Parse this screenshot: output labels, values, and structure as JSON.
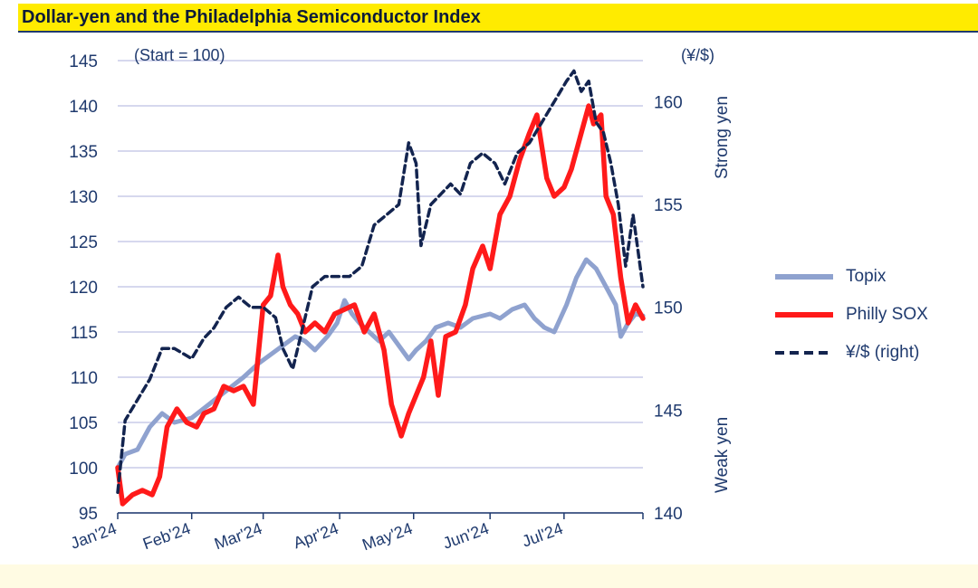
{
  "header": {
    "title": "Dollar-yen and the Philadelphia Semiconductor Index"
  },
  "annotations": {
    "start_note": "(Start = 100)",
    "right_unit": "(¥/$)",
    "strong_yen": "Strong yen",
    "weak_yen": "Weak yen"
  },
  "colors": {
    "topix": "#8fa2cf",
    "sox": "#ff1a1a",
    "usdjpy": "#13244f",
    "grid": "#c9cbe8",
    "axis": "#1f3a6e"
  },
  "chart_data": {
    "type": "line",
    "x_axis": {
      "categories": [
        "Jan'24",
        "Feb'24",
        "Mar'24",
        "Apr'24",
        "May'24",
        "Jun'24",
        "Jul'24"
      ],
      "range": [
        "2024-01-02",
        "2024-08-02"
      ]
    },
    "y_left": {
      "ticks": [
        95,
        100,
        105,
        110,
        115,
        120,
        125,
        130,
        135,
        140,
        145
      ],
      "range": [
        95,
        145
      ],
      "label": "(Start = 100)"
    },
    "y_right": {
      "ticks": [
        140,
        145,
        150,
        155,
        160
      ],
      "range": [
        140,
        162
      ],
      "label": "(¥/$)"
    },
    "grid": true,
    "legend_position": "right",
    "series": [
      {
        "name": "Topix",
        "axis": "left",
        "style": "solid",
        "points": [
          [
            "2024-01-02",
            100.0
          ],
          [
            "2024-01-05",
            101.5
          ],
          [
            "2024-01-10",
            102.0
          ],
          [
            "2024-01-15",
            104.5
          ],
          [
            "2024-01-20",
            106.0
          ],
          [
            "2024-01-25",
            105.0
          ],
          [
            "2024-02-01",
            105.5
          ],
          [
            "2024-02-08",
            107.0
          ],
          [
            "2024-02-15",
            108.5
          ],
          [
            "2024-02-22",
            110.0
          ],
          [
            "2024-02-28",
            111.5
          ],
          [
            "2024-03-04",
            112.5
          ],
          [
            "2024-03-09",
            113.5
          ],
          [
            "2024-03-14",
            114.5
          ],
          [
            "2024-03-18",
            114.0
          ],
          [
            "2024-03-22",
            113.0
          ],
          [
            "2024-03-27",
            114.5
          ],
          [
            "2024-03-31",
            116.0
          ],
          [
            "2024-04-03",
            118.5
          ],
          [
            "2024-04-06",
            117.0
          ],
          [
            "2024-04-09",
            116.0
          ],
          [
            "2024-04-13",
            115.0
          ],
          [
            "2024-04-17",
            114.0
          ],
          [
            "2024-04-21",
            115.0
          ],
          [
            "2024-04-25",
            113.5
          ],
          [
            "2024-04-29",
            112.0
          ],
          [
            "2024-05-02",
            113.0
          ],
          [
            "2024-05-06",
            114.0
          ],
          [
            "2024-05-10",
            115.5
          ],
          [
            "2024-05-15",
            116.0
          ],
          [
            "2024-05-20",
            115.5
          ],
          [
            "2024-05-25",
            116.5
          ],
          [
            "2024-06-01",
            117.0
          ],
          [
            "2024-06-05",
            116.5
          ],
          [
            "2024-06-10",
            117.5
          ],
          [
            "2024-06-15",
            118.0
          ],
          [
            "2024-06-19",
            116.5
          ],
          [
            "2024-06-23",
            115.5
          ],
          [
            "2024-06-27",
            115.0
          ],
          [
            "2024-07-02",
            118.0
          ],
          [
            "2024-07-06",
            121.0
          ],
          [
            "2024-07-10",
            123.0
          ],
          [
            "2024-07-14",
            122.0
          ],
          [
            "2024-07-18",
            120.0
          ],
          [
            "2024-07-22",
            118.0
          ],
          [
            "2024-07-24",
            114.5
          ],
          [
            "2024-07-27",
            116.0
          ],
          [
            "2024-07-30",
            117.0
          ],
          [
            "2024-08-02",
            116.8
          ]
        ]
      },
      {
        "name": "Philly SOX",
        "axis": "left",
        "style": "solid",
        "points": [
          [
            "2024-01-02",
            100.0
          ],
          [
            "2024-01-04",
            96.0
          ],
          [
            "2024-01-08",
            97.0
          ],
          [
            "2024-01-12",
            97.5
          ],
          [
            "2024-01-16",
            97.0
          ],
          [
            "2024-01-19",
            99.0
          ],
          [
            "2024-01-22",
            104.5
          ],
          [
            "2024-01-26",
            106.5
          ],
          [
            "2024-01-30",
            105.0
          ],
          [
            "2024-02-03",
            104.5
          ],
          [
            "2024-02-06",
            106.0
          ],
          [
            "2024-02-10",
            106.5
          ],
          [
            "2024-02-14",
            109.0
          ],
          [
            "2024-02-18",
            108.5
          ],
          [
            "2024-02-22",
            109.0
          ],
          [
            "2024-02-26",
            107.0
          ],
          [
            "2024-03-01",
            118.0
          ],
          [
            "2024-03-04",
            119.0
          ],
          [
            "2024-03-07",
            123.5
          ],
          [
            "2024-03-09",
            120.0
          ],
          [
            "2024-03-12",
            118.0
          ],
          [
            "2024-03-15",
            117.0
          ],
          [
            "2024-03-18",
            115.0
          ],
          [
            "2024-03-22",
            116.0
          ],
          [
            "2024-03-26",
            115.0
          ],
          [
            "2024-03-30",
            117.0
          ],
          [
            "2024-04-03",
            117.5
          ],
          [
            "2024-04-07",
            118.0
          ],
          [
            "2024-04-11",
            115.0
          ],
          [
            "2024-04-15",
            117.0
          ],
          [
            "2024-04-19",
            113.0
          ],
          [
            "2024-04-22",
            107.0
          ],
          [
            "2024-04-26",
            103.5
          ],
          [
            "2024-04-29",
            106.0
          ],
          [
            "2024-05-02",
            108.0
          ],
          [
            "2024-05-05",
            110.0
          ],
          [
            "2024-05-08",
            114.0
          ],
          [
            "2024-05-11",
            108.0
          ],
          [
            "2024-05-14",
            114.5
          ],
          [
            "2024-05-18",
            115.0
          ],
          [
            "2024-05-22",
            118.0
          ],
          [
            "2024-05-25",
            122.0
          ],
          [
            "2024-05-29",
            124.5
          ],
          [
            "2024-06-01",
            122.0
          ],
          [
            "2024-06-05",
            128.0
          ],
          [
            "2024-06-09",
            130.0
          ],
          [
            "2024-06-13",
            134.0
          ],
          [
            "2024-06-17",
            137.0
          ],
          [
            "2024-06-20",
            139.0
          ],
          [
            "2024-06-24",
            132.0
          ],
          [
            "2024-06-27",
            130.0
          ],
          [
            "2024-07-01",
            131.0
          ],
          [
            "2024-07-04",
            133.0
          ],
          [
            "2024-07-08",
            137.0
          ],
          [
            "2024-07-11",
            140.0
          ],
          [
            "2024-07-13",
            138.0
          ],
          [
            "2024-07-16",
            139.0
          ],
          [
            "2024-07-18",
            130.0
          ],
          [
            "2024-07-21",
            128.0
          ],
          [
            "2024-07-24",
            121.0
          ],
          [
            "2024-07-27",
            116.0
          ],
          [
            "2024-07-30",
            118.0
          ],
          [
            "2024-08-02",
            116.5
          ]
        ]
      },
      {
        "name": "¥/$ (right)",
        "axis": "right",
        "style": "dashed",
        "points": [
          [
            "2024-01-02",
            141.0
          ],
          [
            "2024-01-05",
            144.5
          ],
          [
            "2024-01-10",
            145.5
          ],
          [
            "2024-01-15",
            146.5
          ],
          [
            "2024-01-20",
            148.0
          ],
          [
            "2024-01-25",
            148.0
          ],
          [
            "2024-02-01",
            147.5
          ],
          [
            "2024-02-06",
            148.5
          ],
          [
            "2024-02-10",
            149.0
          ],
          [
            "2024-02-15",
            150.0
          ],
          [
            "2024-02-20",
            150.5
          ],
          [
            "2024-02-25",
            150.0
          ],
          [
            "2024-03-01",
            150.0
          ],
          [
            "2024-03-06",
            149.5
          ],
          [
            "2024-03-09",
            148.0
          ],
          [
            "2024-03-13",
            147.0
          ],
          [
            "2024-03-17",
            149.0
          ],
          [
            "2024-03-21",
            151.0
          ],
          [
            "2024-03-26",
            151.5
          ],
          [
            "2024-03-31",
            151.5
          ],
          [
            "2024-04-05",
            151.5
          ],
          [
            "2024-04-10",
            152.0
          ],
          [
            "2024-04-15",
            154.0
          ],
          [
            "2024-04-20",
            154.5
          ],
          [
            "2024-04-25",
            155.0
          ],
          [
            "2024-04-29",
            158.0
          ],
          [
            "2024-05-02",
            157.0
          ],
          [
            "2024-05-04",
            153.0
          ],
          [
            "2024-05-08",
            155.0
          ],
          [
            "2024-05-12",
            155.5
          ],
          [
            "2024-05-16",
            156.0
          ],
          [
            "2024-05-20",
            155.5
          ],
          [
            "2024-05-24",
            157.0
          ],
          [
            "2024-05-29",
            157.5
          ],
          [
            "2024-06-03",
            157.0
          ],
          [
            "2024-06-07",
            156.0
          ],
          [
            "2024-06-12",
            157.5
          ],
          [
            "2024-06-17",
            158.0
          ],
          [
            "2024-06-22",
            159.0
          ],
          [
            "2024-06-27",
            160.0
          ],
          [
            "2024-07-02",
            161.0
          ],
          [
            "2024-07-05",
            161.5
          ],
          [
            "2024-07-08",
            160.5
          ],
          [
            "2024-07-11",
            161.0
          ],
          [
            "2024-07-14",
            159.0
          ],
          [
            "2024-07-17",
            158.5
          ],
          [
            "2024-07-20",
            157.0
          ],
          [
            "2024-07-23",
            155.0
          ],
          [
            "2024-07-26",
            152.0
          ],
          [
            "2024-07-29",
            154.5
          ],
          [
            "2024-08-02",
            151.0
          ]
        ]
      }
    ]
  }
}
